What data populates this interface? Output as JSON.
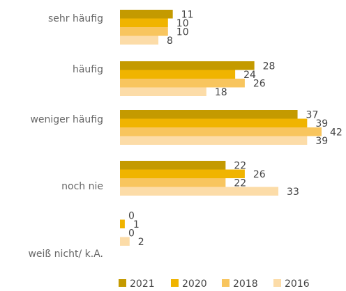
{
  "chart_data": {
    "type": "bar",
    "orientation": "horizontal",
    "categories": [
      "sehr häufig",
      "häufig",
      "weniger häufig",
      "noch nie",
      "weiß nicht/ k.A."
    ],
    "series": [
      {
        "name": "2021",
        "color": "#c49a00",
        "values": [
          11,
          28,
          37,
          22,
          0
        ]
      },
      {
        "name": "2020",
        "color": "#f0b400",
        "values": [
          10,
          24,
          39,
          26,
          1
        ]
      },
      {
        "name": "2018",
        "color": "#f8c55e",
        "values": [
          10,
          26,
          42,
          22,
          0
        ]
      },
      {
        "name": "2016",
        "color": "#fcdca8",
        "values": [
          8,
          18,
          39,
          33,
          2
        ]
      }
    ],
    "legend": "bottom"
  }
}
